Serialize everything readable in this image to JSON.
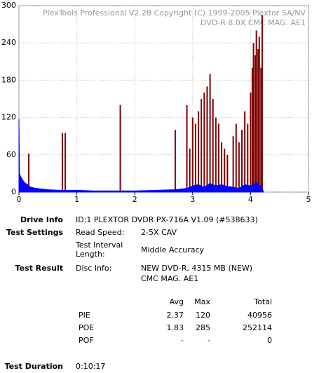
{
  "chart_data": {
    "type": "spike",
    "title": "PlexTools Professional V2.28 Copyright (C) 1999-2005 Plextor SA/NV",
    "subtitle": "DVD-R   8.0X   CMC MAG. AE1",
    "xlim": [
      0,
      5
    ],
    "xticks": [
      0,
      1,
      2,
      3,
      4,
      5
    ],
    "ylim": [
      0,
      300
    ],
    "yticks": [
      0,
      60,
      120,
      180,
      240,
      300
    ],
    "grid": true,
    "series": [
      {
        "name": "PIE",
        "color": "#0000ff",
        "style": "area",
        "x": [
          0,
          0.01,
          0.03,
          0.06,
          0.1,
          0.15,
          0.2,
          0.3,
          0.4,
          0.5,
          0.7,
          1.0,
          1.3,
          1.6,
          2.0,
          2.4,
          2.7,
          2.9,
          3.0,
          3.1,
          3.2,
          3.3,
          3.4,
          3.5,
          3.6,
          3.7,
          3.8,
          3.9,
          4.0,
          4.1,
          4.2,
          4.22
        ],
        "values": [
          118,
          30,
          25,
          20,
          15,
          12,
          8,
          6,
          5,
          4,
          3,
          3,
          2,
          2,
          2,
          3,
          4,
          6,
          10,
          12,
          8,
          14,
          10,
          12,
          9,
          8,
          6,
          12,
          10,
          15,
          8,
          0
        ]
      },
      {
        "name": "POE",
        "color": "#800000",
        "style": "bars",
        "x": [
          0.17,
          0.75,
          0.8,
          1.75,
          2.7,
          2.9,
          2.95,
          3.0,
          3.05,
          3.1,
          3.15,
          3.2,
          3.25,
          3.3,
          3.35,
          3.4,
          3.45,
          3.5,
          3.55,
          3.6,
          3.7,
          3.75,
          3.8,
          3.85,
          3.9,
          3.95,
          4.0,
          4.03,
          4.05,
          4.08,
          4.1,
          4.13,
          4.15,
          4.18,
          4.2
        ],
        "values": [
          62,
          95,
          95,
          140,
          100,
          140,
          70,
          120,
          110,
          130,
          150,
          160,
          170,
          190,
          150,
          120,
          110,
          80,
          70,
          60,
          90,
          110,
          80,
          100,
          130,
          110,
          160,
          200,
          240,
          220,
          260,
          230,
          250,
          200,
          285
        ]
      }
    ]
  },
  "info": {
    "drive_label": "Drive Info",
    "drive": "ID:1 PLEXTOR DVDR PX-716A V1.09 (#538633)",
    "settings_label": "Test Settings",
    "speed_label": "Read Speed:",
    "speed": "2-5X CAV",
    "interval_label": "Test Interval Length:",
    "interval": "Middle Accuracy",
    "result_label": "Test Result",
    "disc_label": "Disc Info:",
    "disc": "NEW DVD-R, 4315 MB (NEW)",
    "disc2": "CMC MAG. AE1",
    "duration_label": "Test Duration",
    "duration": "0:10:17"
  },
  "table": {
    "header": [
      "Avg",
      "Max",
      "Total"
    ],
    "rows": [
      [
        "PIE",
        2.37,
        120,
        40956
      ],
      [
        "POE",
        1.83,
        285,
        252114
      ],
      [
        "POF",
        "-",
        "-",
        0
      ]
    ]
  }
}
